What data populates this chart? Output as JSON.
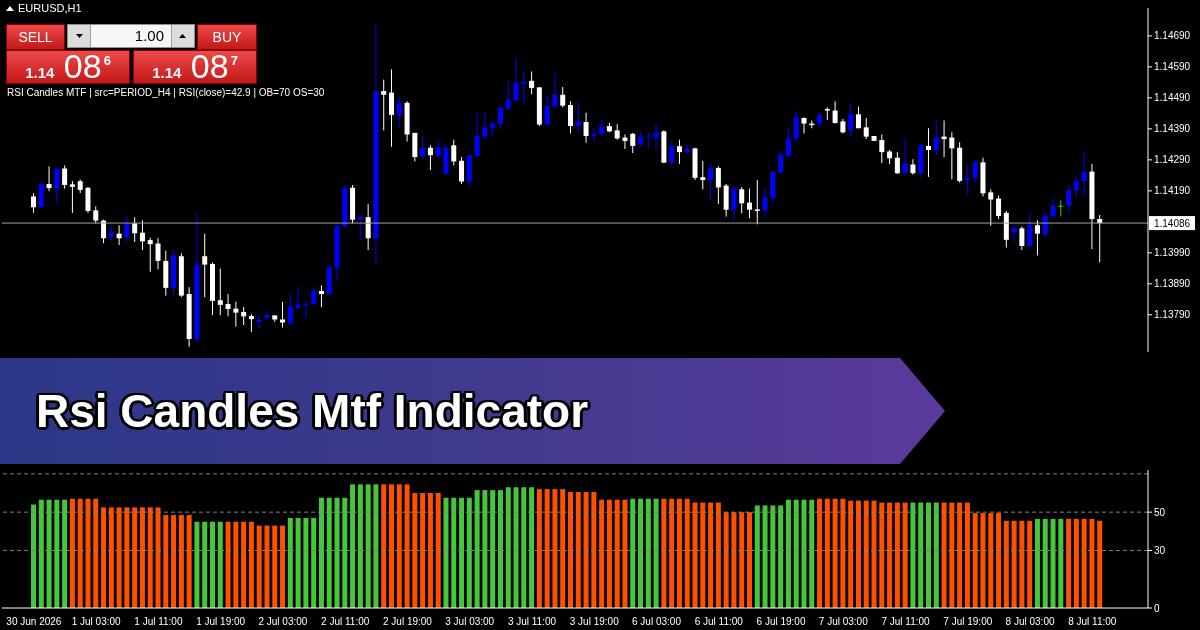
{
  "chart_data": [
    {
      "type": "candlestick",
      "title": "Rsi Candles Mtf Indicator",
      "subtitle": "EURUSD,H1",
      "annotations": [
        "RSI Candles MTF | src=PERIOD_H4 | RSI(close)=42.9 | OB=70 OS=30",
        "SELL",
        "1.00",
        "BUY",
        "1.14 08$^{6}$",
        "1.14 08$^{7}$"
      ],
      "categories": [
        null,
        null,
        null,
        null,
        null,
        null,
        null,
        null,
        null,
        null,
        null,
        null,
        null,
        null,
        null,
        null,
        null,
        null,
        null,
        null,
        null,
        null,
        null,
        null,
        null,
        null,
        null,
        null,
        null,
        null,
        null,
        null,
        null,
        null,
        null,
        null,
        null,
        null,
        null,
        null,
        null,
        null,
        null,
        null,
        null,
        null,
        null,
        null,
        null,
        null,
        null,
        null,
        null,
        null,
        null,
        null,
        null,
        null,
        null,
        null,
        null,
        null,
        null,
        null,
        null,
        null,
        null,
        null,
        null,
        null,
        null,
        null,
        null,
        null,
        null,
        null,
        null,
        null,
        null,
        null,
        null,
        null,
        null,
        null,
        null,
        null,
        null,
        null,
        null,
        null,
        null,
        null,
        null,
        null,
        null,
        null,
        null,
        null,
        null,
        null,
        null,
        null,
        null,
        null,
        null,
        null,
        null,
        null,
        null,
        null,
        null,
        null,
        null,
        null,
        null,
        null,
        null,
        null,
        null,
        null,
        null,
        null,
        null,
        null,
        null,
        null,
        null,
        null,
        null,
        null,
        null,
        null,
        null,
        null,
        null,
        null,
        null,
        null
      ],
      "ohlc": [
        [
          1.14172,
          1.14182,
          1.14119,
          1.14137
        ],
        [
          1.14137,
          1.14219,
          1.14137,
          1.14212
        ],
        [
          1.14212,
          1.14269,
          1.14189,
          1.14199
        ],
        [
          1.14197,
          1.14262,
          1.14149,
          1.14262
        ],
        [
          1.14262,
          1.14272,
          1.14197,
          1.14209
        ],
        [
          1.14211,
          1.14222,
          1.14119,
          1.14203
        ],
        [
          1.14221,
          1.14227,
          1.14183,
          1.14193
        ],
        [
          1.142,
          1.14202,
          1.14119,
          1.14125
        ],
        [
          1.14127,
          1.1414,
          1.14085,
          1.14094
        ],
        [
          1.14094,
          1.14097,
          1.14021,
          1.14037
        ],
        [
          1.14041,
          1.14079,
          1.14027,
          1.14056
        ],
        [
          1.14052,
          1.14079,
          1.14015,
          1.14037
        ],
        [
          1.1404,
          1.14109,
          1.14025,
          1.14085
        ],
        [
          1.14085,
          1.14105,
          1.14025,
          1.14053
        ],
        [
          1.14055,
          1.14095,
          1.13999,
          1.14027
        ],
        [
          1.14031,
          1.14039,
          1.13929,
          1.14018
        ],
        [
          1.1402,
          1.14037,
          1.13937,
          1.13964
        ],
        [
          1.13964,
          1.13997,
          1.13852,
          1.13877
        ],
        [
          1.13877,
          1.13997,
          1.13857,
          1.13982
        ],
        [
          1.13979,
          1.13989,
          1.13847,
          1.13852
        ],
        [
          1.13857,
          1.13879,
          1.13687,
          1.13712
        ],
        [
          1.13712,
          1.14117,
          1.13702,
          1.13952
        ],
        [
          1.13979,
          1.14052,
          1.13847,
          1.13952
        ],
        [
          1.13954,
          1.13959,
          1.13789,
          1.13835
        ],
        [
          1.13837,
          1.13939,
          1.13789,
          1.13822
        ],
        [
          1.13825,
          1.13857,
          1.13785,
          1.13809
        ],
        [
          1.1381,
          1.13832,
          1.13752,
          1.13797
        ],
        [
          1.13799,
          1.13815,
          1.13757,
          1.13785
        ],
        [
          1.13786,
          1.13792,
          1.13735,
          1.13776
        ],
        [
          1.13767,
          1.13789,
          1.13745,
          1.13775
        ],
        [
          1.13781,
          1.13797,
          1.13772,
          1.13789
        ],
        [
          1.13788,
          1.13789,
          1.13767,
          1.13775
        ],
        [
          1.13775,
          1.13832,
          1.13749,
          1.13765
        ],
        [
          1.13762,
          1.13857,
          1.13759,
          1.13817
        ],
        [
          1.13812,
          1.13882,
          1.13809,
          1.13822
        ],
        [
          1.13821,
          1.13832,
          1.13779,
          1.13825
        ],
        [
          1.13825,
          1.13882,
          1.13822,
          1.13867
        ],
        [
          1.13867,
          1.13885,
          1.13815,
          1.13857
        ],
        [
          1.13857,
          1.13945,
          1.13852,
          1.13945
        ],
        [
          1.13942,
          1.14089,
          1.13902,
          1.14077
        ],
        [
          1.14077,
          1.14209,
          1.14067,
          1.14199
        ],
        [
          1.142,
          1.14209,
          1.14085,
          1.14097
        ],
        [
          1.14097,
          1.14109,
          1.14029,
          1.14105
        ],
        [
          1.14105,
          1.14147,
          1.13999,
          1.14037
        ],
        [
          1.14037,
          1.14725,
          1.13952,
          1.14512
        ],
        [
          1.14512,
          1.14549,
          1.14385,
          1.145
        ],
        [
          1.14507,
          1.14582,
          1.14332,
          1.14435
        ],
        [
          1.14434,
          1.14495,
          1.14395,
          1.14474
        ],
        [
          1.14474,
          1.14479,
          1.14349,
          1.14372
        ],
        [
          1.14377,
          1.14377,
          1.14285,
          1.14299
        ],
        [
          1.14302,
          1.14367,
          1.14292,
          1.14329
        ],
        [
          1.14329,
          1.14337,
          1.14257,
          1.14305
        ],
        [
          1.14302,
          1.14355,
          1.14299,
          1.14332
        ],
        [
          1.14245,
          1.14339,
          1.14245,
          1.14329
        ],
        [
          1.14337,
          1.14355,
          1.14272,
          1.14285
        ],
        [
          1.14287,
          1.14299,
          1.14212,
          1.1422
        ],
        [
          1.1422,
          1.14307,
          1.14202,
          1.14305
        ],
        [
          1.14302,
          1.14442,
          1.14299,
          1.14367
        ],
        [
          1.14365,
          1.14445,
          1.14355,
          1.14395
        ],
        [
          1.14392,
          1.14412,
          1.14367,
          1.14409
        ],
        [
          1.14407,
          1.14462,
          1.14389,
          1.14459
        ],
        [
          1.14455,
          1.14545,
          1.14452,
          1.14485
        ],
        [
          1.14482,
          1.1462,
          1.14477,
          1.14539
        ],
        [
          1.14535,
          1.14577,
          1.14475,
          1.14542
        ],
        [
          1.14545,
          1.14575,
          1.14502,
          1.14522
        ],
        [
          1.14524,
          1.14524,
          1.14399,
          1.14404
        ],
        [
          1.14404,
          1.14499,
          1.14402,
          1.14464
        ],
        [
          1.14462,
          1.14569,
          1.14459,
          1.145
        ],
        [
          1.145,
          1.14525,
          1.14459,
          1.14465
        ],
        [
          1.14467,
          1.14479,
          1.14375,
          1.14399
        ],
        [
          1.14399,
          1.14477,
          1.14379,
          1.14414
        ],
        [
          1.14412,
          1.14442,
          1.14345,
          1.14367
        ],
        [
          1.14367,
          1.14395,
          1.14349,
          1.14374
        ],
        [
          1.14372,
          1.14419,
          1.14372,
          1.14397
        ],
        [
          1.14399,
          1.14409,
          1.14379,
          1.14382
        ],
        [
          1.14385,
          1.14405,
          1.14355,
          1.14359
        ],
        [
          1.14362,
          1.14372,
          1.14325,
          1.14351
        ],
        [
          1.14374,
          1.14377,
          1.14312,
          1.14335
        ],
        [
          1.14339,
          1.14379,
          1.14337,
          1.14365
        ],
        [
          1.14362,
          1.14379,
          1.14325,
          1.14365
        ],
        [
          1.14362,
          1.14409,
          1.14322,
          1.14379
        ],
        [
          1.14382,
          1.14385,
          1.14279,
          1.14281
        ],
        [
          1.14281,
          1.14349,
          1.14275,
          1.14335
        ],
        [
          1.14334,
          1.14355,
          1.14277,
          1.14315
        ],
        [
          1.14314,
          1.14339,
          1.14312,
          1.14325
        ],
        [
          1.14327,
          1.14329,
          1.14225,
          1.14232
        ],
        [
          1.14234,
          1.14287,
          1.14195,
          1.14225
        ],
        [
          1.14225,
          1.14279,
          1.14162,
          1.14264
        ],
        [
          1.14264,
          1.14269,
          1.14147,
          1.14201
        ],
        [
          1.14207,
          1.14212,
          1.14107,
          1.14129
        ],
        [
          1.14129,
          1.14207,
          1.14095,
          1.14195
        ],
        [
          1.14195,
          1.14202,
          1.14117,
          1.1415
        ],
        [
          1.14152,
          1.14197,
          1.14102,
          1.14129
        ],
        [
          1.1413,
          1.14225,
          1.14082,
          1.14125
        ],
        [
          1.14127,
          1.14199,
          1.14107,
          1.14169
        ],
        [
          1.14167,
          1.14257,
          1.14152,
          1.14252
        ],
        [
          1.14249,
          1.14317,
          1.14245,
          1.14307
        ],
        [
          1.14302,
          1.14392,
          1.14299,
          1.14359
        ],
        [
          1.14359,
          1.14449,
          1.14345,
          1.14429
        ],
        [
          1.14425,
          1.14427,
          1.14375,
          1.14407
        ],
        [
          1.14407,
          1.14417,
          1.14392,
          1.14402
        ],
        [
          1.14407,
          1.14442,
          1.14399,
          1.14435
        ],
        [
          1.14454,
          1.14459,
          1.14419,
          1.14449
        ],
        [
          1.14449,
          1.14479,
          1.14407,
          1.14409
        ],
        [
          1.14414,
          1.14422,
          1.14375,
          1.14379
        ],
        [
          1.14385,
          1.14472,
          1.14365,
          1.14437
        ],
        [
          1.14437,
          1.14462,
          1.14392,
          1.14392
        ],
        [
          1.14395,
          1.14425,
          1.14357,
          1.14365
        ],
        [
          1.14367,
          1.14367,
          1.14351,
          1.14351
        ],
        [
          1.14354,
          1.14372,
          1.14279,
          1.14315
        ],
        [
          1.14317,
          1.14322,
          1.14277,
          1.14295
        ],
        [
          1.14297,
          1.14315,
          1.14244,
          1.14247
        ],
        [
          1.14247,
          1.14357,
          1.14245,
          1.14279
        ],
        [
          1.14275,
          1.14292,
          1.14242,
          1.14247
        ],
        [
          1.14247,
          1.14339,
          1.14232,
          1.14337
        ],
        [
          1.14335,
          1.14392,
          1.14235,
          1.14322
        ],
        [
          1.14322,
          1.14419,
          1.14305,
          1.14362
        ],
        [
          1.14365,
          1.14417,
          1.14299,
          1.14357
        ],
        [
          1.14362,
          1.14379,
          1.14227,
          1.14327
        ],
        [
          1.14329,
          1.14347,
          1.14217,
          1.14222
        ],
        [
          1.14225,
          1.14275,
          1.14177,
          1.14232
        ],
        [
          1.14232,
          1.14292,
          1.14217,
          1.14282
        ],
        [
          1.14282,
          1.14297,
          1.14172,
          1.14182
        ],
        [
          1.14185,
          1.14195,
          1.14077,
          1.14162
        ],
        [
          1.14165,
          1.14175,
          1.14099,
          1.14109
        ],
        [
          1.14119,
          1.14125,
          1.14007,
          1.14032
        ],
        [
          1.14055,
          1.14085,
          1.14025,
          1.14069
        ],
        [
          1.14069,
          1.14075,
          1.13999,
          1.14012
        ],
        [
          1.14012,
          1.14115,
          1.14007,
          1.14079
        ],
        [
          1.14079,
          1.14095,
          1.13982,
          1.14052
        ],
        [
          1.14049,
          1.14122,
          1.14045,
          1.14109
        ],
        [
          1.14107,
          1.14165,
          1.14105,
          1.14142
        ],
        [
          1.14142,
          1.14159,
          1.14107,
          1.14142
        ],
        [
          1.14142,
          1.14207,
          1.14119,
          1.14192
        ],
        [
          1.14192,
          1.14237,
          1.14169,
          1.14222
        ],
        [
          1.14222,
          1.14315,
          1.14172,
          1.14252
        ],
        [
          1.14252,
          1.14277,
          1.14002,
          1.14099
        ],
        [
          1.14099,
          1.14112,
          1.13959,
          1.14086
        ]
      ],
      "colors": [
        "#ffffff",
        "#0000ff",
        "#ffffff",
        "#0000ff",
        "#ffffff",
        "#ffffff",
        "#ffffff",
        "#ffffff",
        "#ffffff",
        "#ffffff",
        "#0000ff",
        "#ffffff",
        "#0000ff",
        "#ffffff",
        "#ffffff",
        "#ffffff",
        "#ffffff",
        "#ffffff",
        "#0000ff",
        "#ffffff",
        "#ffffff",
        "#0000ff",
        "#ffffff",
        "#ffffff",
        "#ffffff",
        "#ffffff",
        "#ffffff",
        "#ffffff",
        "#ffffff",
        "#0000ff",
        "#0000ff",
        "#ffffff",
        "#ffffff",
        "#0000ff",
        "#0000ff",
        "#0000ff",
        "#0000ff",
        "#ffffff",
        "#0000ff",
        "#0000ff",
        "#0000ff",
        "#ffffff",
        "#0000ff",
        "#ffffff",
        "#0000ff",
        "#ffffff",
        "#ffffff",
        "#0000ff",
        "#ffffff",
        "#ffffff",
        "#0000ff",
        "#ffffff",
        "#0000ff",
        "#0000ff",
        "#ffffff",
        "#ffffff",
        "#0000ff",
        "#0000ff",
        "#0000ff",
        "#0000ff",
        "#0000ff",
        "#0000ff",
        "#0000ff",
        "#0000ff",
        "#ffffff",
        "#ffffff",
        "#0000ff",
        "#0000ff",
        "#ffffff",
        "#ffffff",
        "#0000ff",
        "#ffffff",
        "#0000ff",
        "#0000ff",
        "#ffffff",
        "#ffffff",
        "#ffffff",
        "#ffffff",
        "#0000ff",
        "#0000ff",
        "#0000ff",
        "#ffffff",
        "#0000ff",
        "#ffffff",
        "#0000ff",
        "#ffffff",
        "#ffffff",
        "#0000ff",
        "#ffffff",
        "#ffffff",
        "#0000ff",
        "#ffffff",
        "#ffffff",
        "#ffffff",
        "#0000ff",
        "#0000ff",
        "#0000ff",
        "#0000ff",
        "#0000ff",
        "#ffffff",
        "#ffffff",
        "#0000ff",
        "#ffffff",
        "#ffffff",
        "#ffffff",
        "#0000ff",
        "#ffffff",
        "#ffffff",
        "#ffffff",
        "#ffffff",
        "#ffffff",
        "#ffffff",
        "#0000ff",
        "#ffffff",
        "#0000ff",
        "#ffffff",
        "#0000ff",
        "#ffffff",
        "#ffffff",
        "#ffffff",
        "#0000ff",
        "#0000ff",
        "#ffffff",
        "#ffffff",
        "#ffffff",
        "#ffffff",
        "#0000ff",
        "#ffffff",
        "#0000ff",
        "#ffffff",
        "#0000ff",
        "#0000ff",
        "#32cd32",
        "#0000ff",
        "#0000ff",
        "#0000ff",
        "#ffffff",
        "#ffffff"
      ],
      "ylim": [
        1.1367,
        1.1478
      ],
      "yticks": [
        {
          "value": 1.1379,
          "label": "1.13790"
        },
        {
          "value": 1.1389,
          "label": "1.13890"
        },
        {
          "value": 1.1399,
          "label": "1.13990"
        },
        {
          "value": 1.1419,
          "label": "1.14190"
        },
        {
          "value": 1.1429,
          "label": "1.14290"
        },
        {
          "value": 1.1439,
          "label": "1.14390"
        },
        {
          "value": 1.1449,
          "label": "1.14490"
        },
        {
          "value": 1.1459,
          "label": "1.14590"
        },
        {
          "value": 1.1469,
          "label": "1.14690"
        }
      ],
      "ref_lines": [
        {
          "axis": "y",
          "value": 1.14086,
          "label": "1.14086",
          "color": "#a0a0a0"
        }
      ],
      "tick_labels": "y"
    },
    {
      "type": "bar",
      "categories": [
        "30 Jun 2026",
        null,
        null,
        null,
        null,
        null,
        null,
        null,
        "1 Jul 03:00",
        null,
        null,
        null,
        null,
        null,
        null,
        null,
        "1 Jul 11:00",
        null,
        null,
        null,
        null,
        null,
        null,
        null,
        "1 Jul 19:00",
        null,
        null,
        null,
        null,
        null,
        null,
        null,
        "2 Jul 03:00",
        null,
        null,
        null,
        null,
        null,
        null,
        null,
        "2 Jul 11:00",
        null,
        null,
        null,
        null,
        null,
        null,
        null,
        "2 Jul 19:00",
        null,
        null,
        null,
        null,
        null,
        null,
        null,
        "3 Jul 03:00",
        null,
        null,
        null,
        null,
        null,
        null,
        null,
        "3 Jul 11:00",
        null,
        null,
        null,
        null,
        null,
        null,
        null,
        "3 Jul 19:00",
        null,
        null,
        null,
        null,
        null,
        null,
        null,
        "6 Jul 03:00",
        null,
        null,
        null,
        null,
        null,
        null,
        null,
        "6 Jul 11:00",
        null,
        null,
        null,
        null,
        null,
        null,
        null,
        "6 Jul 19:00",
        null,
        null,
        null,
        null,
        null,
        null,
        null,
        "7 Jul 03:00",
        null,
        null,
        null,
        null,
        null,
        null,
        null,
        "7 Jul 11:00",
        null,
        null,
        null,
        null,
        null,
        null,
        null,
        "7 Jul 19:00",
        null,
        null,
        null,
        null,
        null,
        null,
        null,
        "8 Jul 03:00",
        null,
        null,
        null,
        null,
        null,
        null,
        null,
        "8 Jul 11:00",
        null
      ],
      "values": [
        54,
        56.5,
        56.5,
        56.5,
        56.5,
        57,
        57,
        57,
        57,
        52.5,
        52.5,
        52.5,
        52.5,
        52.5,
        52.5,
        52.5,
        52.5,
        48.5,
        48.5,
        48.5,
        48.5,
        45,
        45,
        45,
        45,
        45,
        45,
        45,
        45,
        43,
        43,
        43,
        43,
        47,
        47,
        47,
        47,
        57.5,
        57.5,
        57.5,
        57.5,
        64.5,
        64.5,
        64.5,
        64.5,
        64.5,
        64.5,
        64.5,
        64.5,
        60,
        60,
        60,
        60,
        57.5,
        57.5,
        57.5,
        57.5,
        61.5,
        61.5,
        61.5,
        61.5,
        63,
        63,
        63,
        63,
        62,
        62,
        62,
        62,
        60.5,
        60.5,
        60.5,
        60.5,
        56.5,
        56.5,
        56.5,
        56.5,
        57,
        57,
        57,
        57,
        57,
        57,
        57,
        57,
        55,
        55,
        55,
        55,
        50,
        50,
        50,
        50,
        53.5,
        53.5,
        53.5,
        53.5,
        56.5,
        56.5,
        56.5,
        56.5,
        57,
        57,
        57,
        57,
        56,
        56,
        56,
        56,
        55,
        55,
        55,
        55,
        55,
        55,
        55,
        55,
        55,
        55,
        55,
        55,
        49.5,
        49.5,
        49.5,
        49.5,
        45.5,
        45.5,
        45.5,
        45.5,
        46.5,
        46.5,
        46.5,
        46.5,
        46.5,
        46.5,
        46.5,
        46.5,
        45.5
      ],
      "colors": [
        "#44c83a",
        "#44c83a",
        "#44c83a",
        "#44c83a",
        "#44c83a",
        "#ff5000",
        "#ff5000",
        "#ff5000",
        "#ff5000",
        "#ff5000",
        "#ff5000",
        "#ff5000",
        "#ff5000",
        "#ff5000",
        "#ff5000",
        "#ff5000",
        "#ff5000",
        "#ff5000",
        "#ff5000",
        "#ff5000",
        "#ff5000",
        "#44c83a",
        "#44c83a",
        "#44c83a",
        "#44c83a",
        "#ff5000",
        "#ff5000",
        "#ff5000",
        "#ff5000",
        "#ff5000",
        "#ff5000",
        "#ff5000",
        "#ff5000",
        "#44c83a",
        "#44c83a",
        "#44c83a",
        "#44c83a",
        "#44c83a",
        "#44c83a",
        "#44c83a",
        "#44c83a",
        "#44c83a",
        "#44c83a",
        "#44c83a",
        "#44c83a",
        "#ff5000",
        "#ff5000",
        "#ff5000",
        "#ff5000",
        "#ff5000",
        "#ff5000",
        "#ff5000",
        "#ff5000",
        "#44c83a",
        "#44c83a",
        "#44c83a",
        "#44c83a",
        "#44c83a",
        "#44c83a",
        "#44c83a",
        "#44c83a",
        "#44c83a",
        "#44c83a",
        "#44c83a",
        "#44c83a",
        "#ff5000",
        "#ff5000",
        "#ff5000",
        "#ff5000",
        "#ff5000",
        "#ff5000",
        "#ff5000",
        "#ff5000",
        "#ff5000",
        "#ff5000",
        "#ff5000",
        "#ff5000",
        "#44c83a",
        "#44c83a",
        "#44c83a",
        "#44c83a",
        "#ff5000",
        "#ff5000",
        "#ff5000",
        "#ff5000",
        "#ff5000",
        "#ff5000",
        "#ff5000",
        "#ff5000",
        "#ff5000",
        "#ff5000",
        "#ff5000",
        "#ff5000",
        "#44c83a",
        "#44c83a",
        "#44c83a",
        "#44c83a",
        "#44c83a",
        "#44c83a",
        "#44c83a",
        "#44c83a",
        "#ff5000",
        "#ff5000",
        "#ff5000",
        "#ff5000",
        "#ff5000",
        "#ff5000",
        "#ff5000",
        "#ff5000",
        "#ff5000",
        "#ff5000",
        "#ff5000",
        "#ff5000",
        "#44c83a",
        "#44c83a",
        "#44c83a",
        "#44c83a",
        "#ff5000",
        "#ff5000",
        "#ff5000",
        "#ff5000",
        "#ff5000",
        "#ff5000",
        "#ff5000",
        "#ff5000",
        "#ff5000",
        "#ff5000",
        "#ff5000",
        "#ff5000",
        "#44c83a",
        "#44c83a",
        "#44c83a",
        "#44c83a",
        "#ff5000",
        "#ff5000",
        "#ff5000",
        "#ff5000",
        "#ff5000"
      ],
      "ylim": [
        0,
        72
      ],
      "yticks": [
        0,
        30,
        50
      ],
      "ref_lines": [
        {
          "axis": "y",
          "value": 30,
          "line_style": "dashed",
          "color": "#808080"
        },
        {
          "axis": "y",
          "value": 50,
          "line_style": "dashed",
          "color": "#808080"
        },
        {
          "axis": "y",
          "value": 70,
          "line_style": "dashed",
          "color": "#808080"
        }
      ]
    }
  ]
}
